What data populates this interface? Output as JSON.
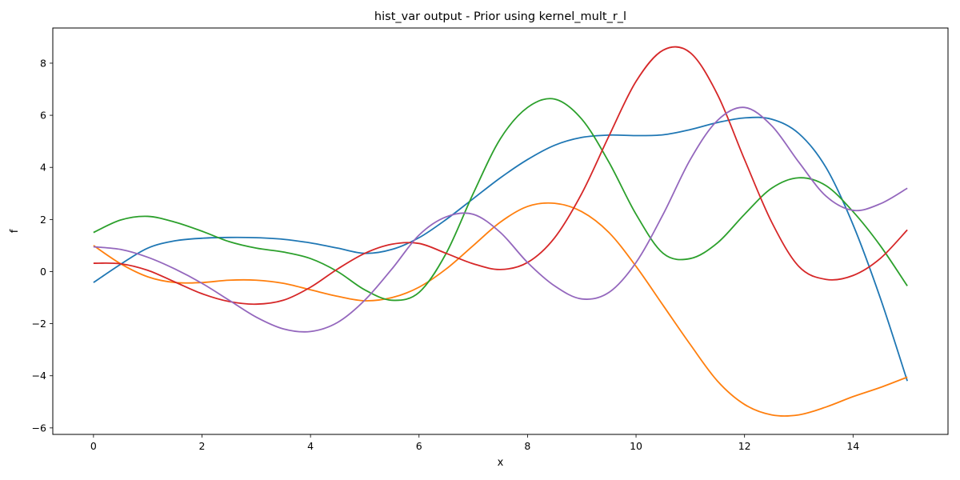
{
  "chart_data": {
    "type": "line",
    "title": "hist_var output - Prior using kernel_mult_r_l",
    "xlabel": "x",
    "ylabel": "f",
    "xlim": [
      -0.75,
      15.75
    ],
    "ylim": [
      -6.25,
      9.35
    ],
    "x_ticks": [
      0,
      2,
      4,
      6,
      8,
      10,
      12,
      14
    ],
    "x_tick_labels": [
      "0",
      "2",
      "4",
      "6",
      "8",
      "10",
      "12",
      "14"
    ],
    "y_ticks": [
      -6,
      -4,
      -2,
      0,
      2,
      4,
      6,
      8
    ],
    "y_tick_labels": [
      "−6",
      "−4",
      "−2",
      "0",
      "2",
      "4",
      "6",
      "8"
    ],
    "grid": false,
    "legend": "none",
    "x": [
      0,
      0.5,
      1,
      1.5,
      2,
      2.5,
      3,
      3.5,
      4,
      4.5,
      5,
      5.5,
      6,
      6.5,
      7,
      7.5,
      8,
      8.5,
      9,
      9.5,
      10,
      10.5,
      11,
      11.5,
      12,
      12.5,
      13,
      13.5,
      14,
      14.5,
      15
    ],
    "series": [
      {
        "color": "#1f77b4",
        "values": [
          -0.42,
          0.28,
          0.9,
          1.18,
          1.28,
          1.31,
          1.3,
          1.24,
          1.1,
          0.9,
          0.7,
          0.85,
          1.3,
          2.0,
          2.8,
          3.6,
          4.3,
          4.85,
          5.15,
          5.24,
          5.22,
          5.25,
          5.45,
          5.72,
          5.9,
          5.85,
          5.3,
          4.0,
          1.8,
          -1.0,
          -4.2
        ]
      },
      {
        "color": "#ff7f0e",
        "values": [
          1.0,
          0.3,
          -0.2,
          -0.42,
          -0.42,
          -0.33,
          -0.33,
          -0.45,
          -0.7,
          -0.95,
          -1.12,
          -1.0,
          -0.6,
          0.1,
          1.0,
          1.9,
          2.5,
          2.62,
          2.3,
          1.5,
          0.2,
          -1.3,
          -2.8,
          -4.2,
          -5.1,
          -5.5,
          -5.5,
          -5.2,
          -4.8,
          -4.45,
          -4.05
        ]
      },
      {
        "color": "#2ca02c",
        "values": [
          1.5,
          1.98,
          2.12,
          1.9,
          1.55,
          1.15,
          0.9,
          0.75,
          0.5,
          0.0,
          -0.7,
          -1.1,
          -0.8,
          0.7,
          3.0,
          5.1,
          6.3,
          6.62,
          5.85,
          4.2,
          2.2,
          0.7,
          0.5,
          1.1,
          2.2,
          3.2,
          3.6,
          3.3,
          2.3,
          1.0,
          -0.55
        ]
      },
      {
        "color": "#d62728",
        "values": [
          0.32,
          0.3,
          0.05,
          -0.4,
          -0.85,
          -1.15,
          -1.25,
          -1.1,
          -0.6,
          0.1,
          0.7,
          1.05,
          1.08,
          0.7,
          0.3,
          0.08,
          0.35,
          1.3,
          3.0,
          5.2,
          7.3,
          8.5,
          8.4,
          6.8,
          4.3,
          1.9,
          0.2,
          -0.3,
          -0.15,
          0.5,
          1.6
        ]
      },
      {
        "color": "#9467bd",
        "values": [
          0.95,
          0.85,
          0.55,
          0.1,
          -0.45,
          -1.1,
          -1.75,
          -2.2,
          -2.3,
          -1.95,
          -1.1,
          0.1,
          1.4,
          2.1,
          2.2,
          1.5,
          0.35,
          -0.55,
          -1.05,
          -0.8,
          0.35,
          2.2,
          4.3,
          5.8,
          6.3,
          5.6,
          4.2,
          2.9,
          2.35,
          2.6,
          3.2
        ]
      }
    ]
  }
}
